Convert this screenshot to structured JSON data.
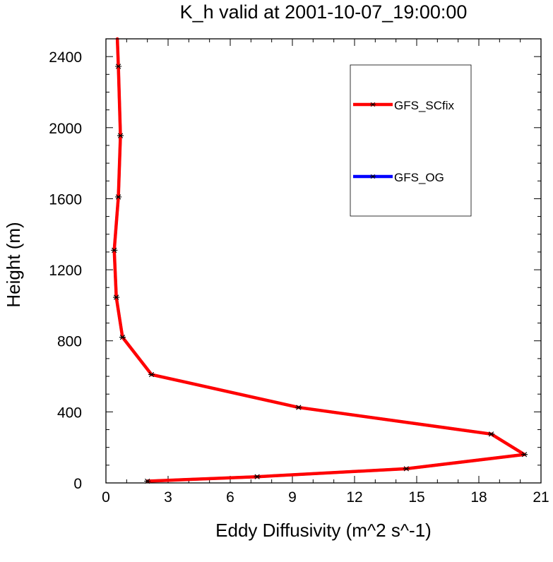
{
  "chart_data": {
    "type": "line",
    "title": "K_h valid at 2001-10-07_19:00:00",
    "xlabel": "Eddy Diffusivity (m^2 s^-1)",
    "ylabel": "Height (m)",
    "xlim": [
      0,
      21
    ],
    "ylim": [
      0,
      2500
    ],
    "x_ticks": [
      0,
      3,
      6,
      9,
      12,
      15,
      18,
      21
    ],
    "y_ticks": [
      0,
      400,
      800,
      1200,
      1600,
      2000,
      2400
    ],
    "grid": false,
    "legend_position": "top-right",
    "series": [
      {
        "name": "GFS_SCfix",
        "color": "#ff0000",
        "marker": "asterisk",
        "points": [
          {
            "x": 2.0,
            "y": 10
          },
          {
            "x": 7.3,
            "y": 35
          },
          {
            "x": 14.5,
            "y": 80
          },
          {
            "x": 20.2,
            "y": 160
          },
          {
            "x": 18.6,
            "y": 275
          },
          {
            "x": 9.3,
            "y": 425
          },
          {
            "x": 2.2,
            "y": 610
          },
          {
            "x": 0.8,
            "y": 820
          },
          {
            "x": 0.5,
            "y": 1045
          },
          {
            "x": 0.4,
            "y": 1310
          },
          {
            "x": 0.6,
            "y": 1610
          },
          {
            "x": 0.7,
            "y": 1955
          },
          {
            "x": 0.6,
            "y": 2345
          },
          {
            "x": 0.55,
            "y": 2500
          }
        ]
      },
      {
        "name": "GFS_OG",
        "color": "#0000ff",
        "marker": "asterisk",
        "points": [
          {
            "x": 2.0,
            "y": 10
          },
          {
            "x": 7.3,
            "y": 35
          },
          {
            "x": 14.5,
            "y": 80
          },
          {
            "x": 20.2,
            "y": 160
          },
          {
            "x": 18.6,
            "y": 275
          },
          {
            "x": 9.3,
            "y": 425
          },
          {
            "x": 2.2,
            "y": 610
          },
          {
            "x": 0.8,
            "y": 820
          },
          {
            "x": 0.5,
            "y": 1045
          },
          {
            "x": 0.4,
            "y": 1310
          },
          {
            "x": 0.6,
            "y": 1610
          },
          {
            "x": 0.7,
            "y": 1955
          },
          {
            "x": 0.6,
            "y": 2345
          },
          {
            "x": 0.55,
            "y": 2500
          }
        ]
      }
    ]
  }
}
